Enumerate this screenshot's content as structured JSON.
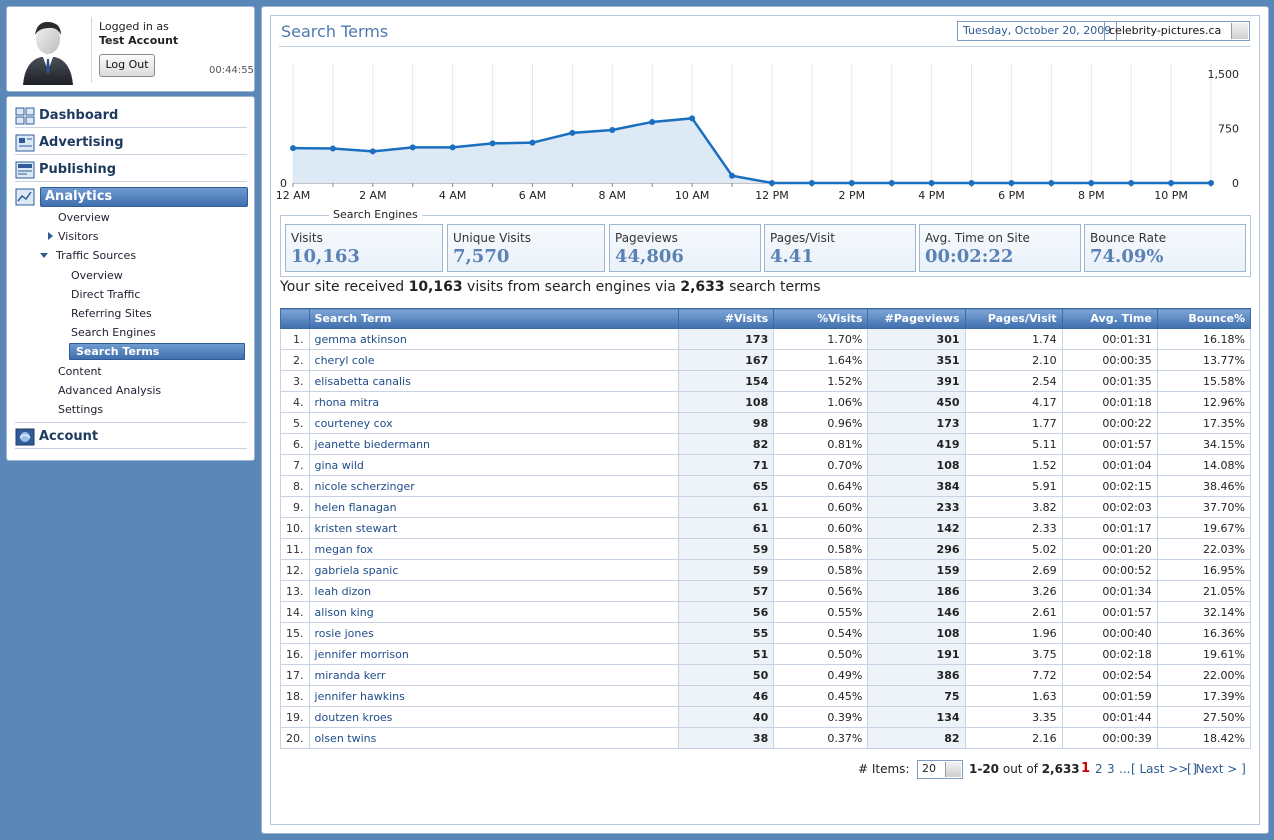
{
  "user": {
    "logged_in_label": "Logged in as",
    "account_name": "Test Account",
    "logout_label": "Log Out",
    "session_time": "00:44:55"
  },
  "nav": {
    "dashboard": "Dashboard",
    "advertising": "Advertising",
    "publishing": "Publishing",
    "analytics": "Analytics",
    "account": "Account",
    "sub": {
      "overview": "Overview",
      "visitors": "Visitors",
      "traffic_sources": "Traffic Sources",
      "ts_overview": "Overview",
      "direct_traffic": "Direct Traffic",
      "referring_sites": "Referring Sites",
      "search_engines": "Search Engines",
      "search_terms": "Search Terms",
      "content": "Content",
      "advanced_analysis": "Advanced Analysis",
      "settings": "Settings"
    }
  },
  "header": {
    "title": "Search Terms",
    "date": "Tuesday, October 20, 2009",
    "site": "celebrity-pictures.ca"
  },
  "chart_data": {
    "type": "area",
    "x": [
      "12 AM",
      "1 AM",
      "2 AM",
      "3 AM",
      "4 AM",
      "5 AM",
      "6 AM",
      "7 AM",
      "8 AM",
      "9 AM",
      "10 AM",
      "11 AM",
      "12 PM",
      "1 PM",
      "2 PM",
      "3 PM",
      "4 PM",
      "5 PM",
      "6 PM",
      "7 PM",
      "8 PM",
      "9 PM",
      "10 PM",
      "11 PM"
    ],
    "x_tick_labels": [
      "12 AM",
      "2 AM",
      "4 AM",
      "6 AM",
      "8 AM",
      "10 AM",
      "12 PM",
      "2 PM",
      "4 PM",
      "6 PM",
      "8 PM",
      "10 PM"
    ],
    "values": [
      480,
      475,
      435,
      490,
      490,
      545,
      555,
      690,
      730,
      840,
      890,
      100,
      0,
      0,
      0,
      0,
      0,
      0,
      0,
      0,
      0,
      0,
      0,
      0
    ],
    "y_ticks": [
      "0",
      "750",
      "1,500"
    ],
    "y_ticks_right": [
      "0",
      "750",
      "1,500"
    ],
    "y_ticks_left": [
      "0"
    ],
    "ylim": [
      0,
      1500
    ],
    "grid": true,
    "line_color": "#1a6fc0",
    "fill_color": "#dde9f5"
  },
  "search_engines": {
    "legend": "Search Engines",
    "stats": [
      {
        "label": "Visits",
        "value": "10,163"
      },
      {
        "label": "Unique Visits",
        "value": "7,570"
      },
      {
        "label": "Pageviews",
        "value": "44,806"
      },
      {
        "label": "Pages/Visit",
        "value": "4.41"
      },
      {
        "label": "Avg. Time on Site",
        "value": "00:02:22"
      },
      {
        "label": "Bounce Rate",
        "value": "74.09%"
      }
    ]
  },
  "summary": {
    "prefix": "Your site received ",
    "visits": "10,163",
    "middle": " visits from search engines via ",
    "terms": "2,633",
    "suffix": " search terms"
  },
  "table": {
    "headers": [
      "Search Term",
      "#Visits",
      "%Visits",
      "#Pageviews",
      "Pages/Visit",
      "Avg. Time",
      "Bounce%"
    ],
    "rows": [
      [
        "1.",
        "gemma atkinson",
        "173",
        "1.70%",
        "301",
        "1.74",
        "00:01:31",
        "16.18%"
      ],
      [
        "2.",
        "cheryl cole",
        "167",
        "1.64%",
        "351",
        "2.10",
        "00:00:35",
        "13.77%"
      ],
      [
        "3.",
        "elisabetta canalis",
        "154",
        "1.52%",
        "391",
        "2.54",
        "00:01:35",
        "15.58%"
      ],
      [
        "4.",
        "rhona mitra",
        "108",
        "1.06%",
        "450",
        "4.17",
        "00:01:18",
        "12.96%"
      ],
      [
        "5.",
        "courteney cox",
        "98",
        "0.96%",
        "173",
        "1.77",
        "00:00:22",
        "17.35%"
      ],
      [
        "6.",
        "jeanette biedermann",
        "82",
        "0.81%",
        "419",
        "5.11",
        "00:01:57",
        "34.15%"
      ],
      [
        "7.",
        "gina wild",
        "71",
        "0.70%",
        "108",
        "1.52",
        "00:01:04",
        "14.08%"
      ],
      [
        "8.",
        "nicole scherzinger",
        "65",
        "0.64%",
        "384",
        "5.91",
        "00:02:15",
        "38.46%"
      ],
      [
        "9.",
        "helen flanagan",
        "61",
        "0.60%",
        "233",
        "3.82",
        "00:02:03",
        "37.70%"
      ],
      [
        "10.",
        "kristen stewart",
        "61",
        "0.60%",
        "142",
        "2.33",
        "00:01:17",
        "19.67%"
      ],
      [
        "11.",
        "megan fox",
        "59",
        "0.58%",
        "296",
        "5.02",
        "00:01:20",
        "22.03%"
      ],
      [
        "12.",
        "gabriela spanic",
        "59",
        "0.58%",
        "159",
        "2.69",
        "00:00:52",
        "16.95%"
      ],
      [
        "13.",
        "leah dizon",
        "57",
        "0.56%",
        "186",
        "3.26",
        "00:01:34",
        "21.05%"
      ],
      [
        "14.",
        "alison king",
        "56",
        "0.55%",
        "146",
        "2.61",
        "00:01:57",
        "32.14%"
      ],
      [
        "15.",
        "rosie jones",
        "55",
        "0.54%",
        "108",
        "1.96",
        "00:00:40",
        "16.36%"
      ],
      [
        "16.",
        "jennifer morrison",
        "51",
        "0.50%",
        "191",
        "3.75",
        "00:02:18",
        "19.61%"
      ],
      [
        "17.",
        "miranda kerr",
        "50",
        "0.49%",
        "386",
        "7.72",
        "00:02:54",
        "22.00%"
      ],
      [
        "18.",
        "jennifer hawkins",
        "46",
        "0.45%",
        "75",
        "1.63",
        "00:01:59",
        "17.39%"
      ],
      [
        "19.",
        "doutzen kroes",
        "40",
        "0.39%",
        "134",
        "3.35",
        "00:01:44",
        "27.50%"
      ],
      [
        "20.",
        "olsen twins",
        "38",
        "0.37%",
        "82",
        "2.16",
        "00:00:39",
        "18.42%"
      ]
    ]
  },
  "pager": {
    "items_label": "# Items:",
    "items_value": "20",
    "range": "1-20",
    "out_of": " out of ",
    "total": "2,633",
    "current": "1",
    "page2": "2",
    "page3": "3",
    "ellipsis": "...",
    "last": "[ Last >> ]",
    "next": "[ Next > ]"
  },
  "icons": {
    "dashboard": "dashboard-icon",
    "advertising": "advertising-icon",
    "publishing": "publishing-icon",
    "analytics": "analytics-icon",
    "account": "account-icon"
  }
}
